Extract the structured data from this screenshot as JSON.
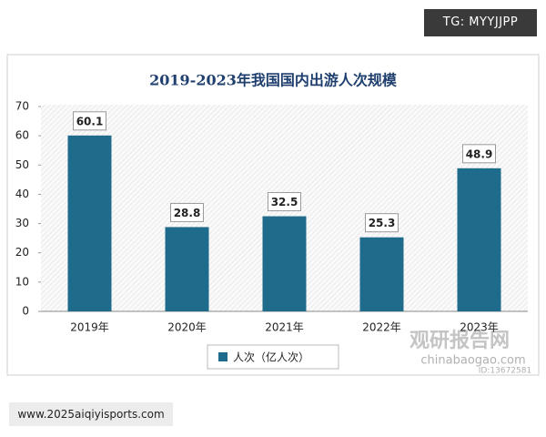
{
  "badge": "TG: MYYJJPP",
  "footer_text": "www.2025aiqiyisports.com",
  "watermark": [
    "观研报告网",
    "chinabaogao.com",
    "ID:13672581"
  ],
  "chart_data": {
    "type": "bar",
    "title": "2019-2023年我国国内出游人次规模",
    "categories": [
      "2019年",
      "2020年",
      "2021年",
      "2022年",
      "2023年"
    ],
    "series": [
      {
        "name": "人次（亿人次）",
        "color": "#1f6b8c",
        "values": [
          60.1,
          28.8,
          32.5,
          25.3,
          48.9
        ]
      }
    ],
    "ylim": [
      0,
      70
    ],
    "yticks": [
      0,
      10,
      20,
      30,
      40,
      50,
      60,
      70
    ],
    "legend": "bottom"
  }
}
